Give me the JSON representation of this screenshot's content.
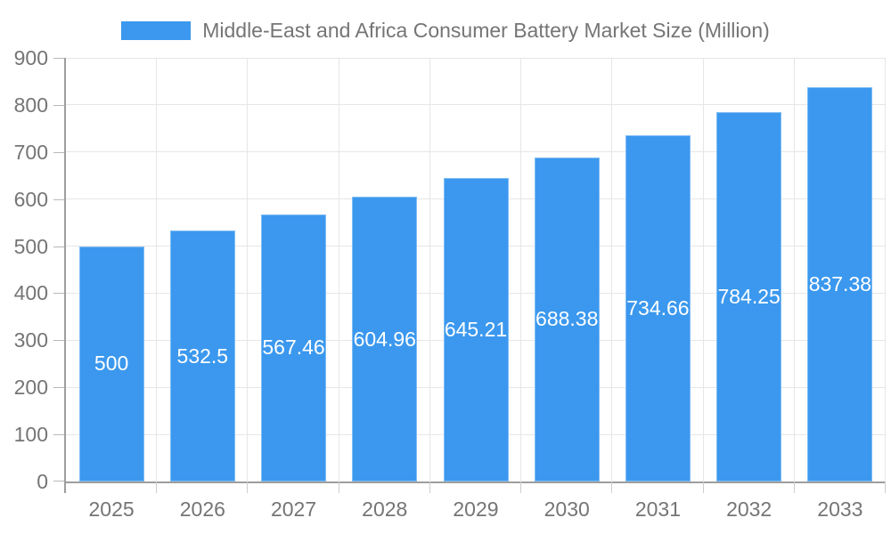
{
  "chart_data": {
    "type": "bar",
    "title": "Middle-East and Africa Consumer Battery Market Size (Million)",
    "categories": [
      "2025",
      "2026",
      "2027",
      "2028",
      "2029",
      "2030",
      "2031",
      "2032",
      "2033"
    ],
    "values": [
      500,
      532.5,
      567.46,
      604.96,
      645.21,
      688.38,
      734.66,
      784.25,
      837.38
    ],
    "value_labels": [
      "500",
      "532.5",
      "567.46",
      "604.96",
      "645.21",
      "688.38",
      "734.66",
      "784.25",
      "837.38"
    ],
    "xlabel": "",
    "ylabel": "",
    "ylim": [
      0,
      900
    ],
    "ytick_step": 100,
    "grid": "horizontal and vertical light gridlines",
    "legend_position": "top-center",
    "colors": {
      "bar": "#3b98ee",
      "axis_line": "#9e9e9e",
      "gridline": "#e6e6e6",
      "tick": "#cccccc",
      "text": "#757575",
      "bar_label_text": "#ffffff",
      "background": "#ffffff"
    }
  }
}
